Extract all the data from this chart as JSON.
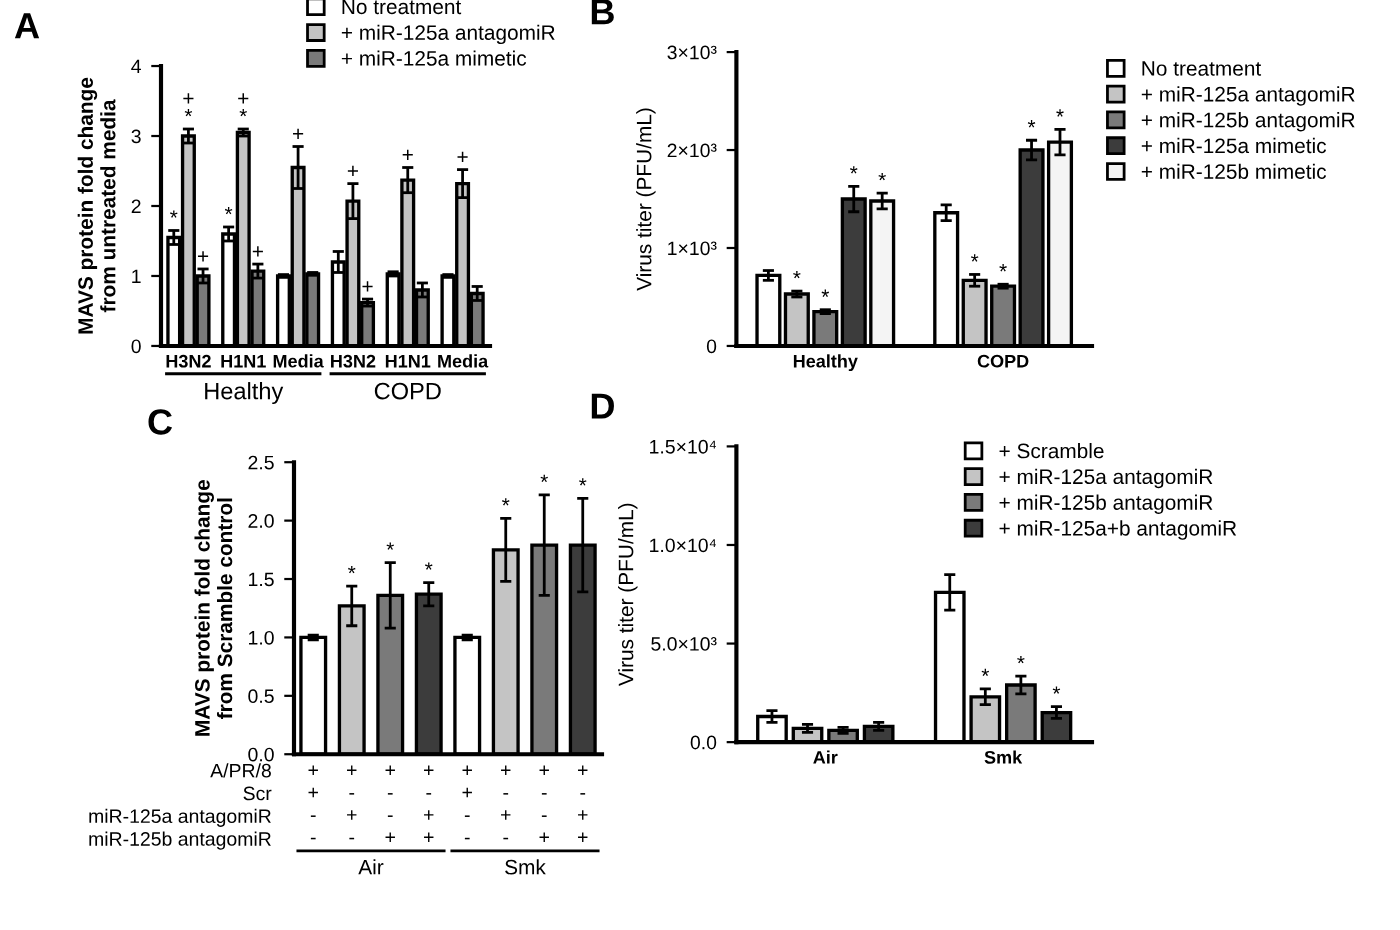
{
  "chart_data": [
    {
      "type": "bar",
      "title": "A",
      "ylabel": "MAVS protein fold change\nfrom untreated media",
      "categories": [
        "H3N2",
        "H1N1",
        "Media",
        "H3N2",
        "H1N1",
        "Media"
      ],
      "annotations": [
        "Healthy",
        "COPD"
      ],
      "ylim": [
        0,
        4
      ],
      "yticks": [
        0,
        1,
        2,
        3,
        4
      ],
      "legend": "top",
      "series": [
        {
          "name": "No treatment",
          "color": "#ffffff",
          "values": [
            1.55,
            1.6,
            1.0,
            1.2,
            1.03,
            1.0
          ],
          "errors": [
            0.1,
            0.1,
            0.02,
            0.15,
            0.03,
            0.02
          ],
          "value_labels": [
            "*",
            "*",
            null,
            null,
            null,
            null
          ]
        },
        {
          "name": "+ miR-125a antagomiR",
          "color": "#c4c4c4",
          "values": [
            3.0,
            3.05,
            2.55,
            2.07,
            2.37,
            2.32
          ],
          "errors": [
            0.1,
            0.05,
            0.3,
            0.25,
            0.18,
            0.2
          ],
          "value_labels": [
            "+\n*",
            "+\n*",
            "+",
            "+",
            "+",
            "+"
          ]
        },
        {
          "name": "+ miR-125a mimetic",
          "color": "#7a7a7a",
          "values": [
            1.0,
            1.07,
            1.03,
            0.62,
            0.8,
            0.75
          ],
          "errors": [
            0.1,
            0.1,
            0.02,
            0.05,
            0.1,
            0.1
          ],
          "value_labels": [
            "+",
            "+",
            null,
            "+",
            null,
            null
          ]
        }
      ]
    },
    {
      "type": "bar",
      "title": "B",
      "ylabel": "Virus titer (PFU/mL)",
      "categories": [
        "Healthy",
        "COPD"
      ],
      "ylim": [
        0,
        3000
      ],
      "yticks": [
        0,
        {
          "value": 1000,
          "label": "1×10³"
        },
        {
          "value": 2000,
          "label": "2×10³"
        },
        {
          "value": 3000,
          "label": "3×10³"
        }
      ],
      "legend": "right",
      "series": [
        {
          "name": "No treatment",
          "color": "#ffffff",
          "values": [
            720,
            1360
          ],
          "errors": [
            50,
            80
          ],
          "value_labels": [
            null,
            null
          ]
        },
        {
          "name": "+ miR-125a antagomiR",
          "color": "#c4c4c4",
          "values": [
            530,
            670
          ],
          "errors": [
            30,
            60
          ],
          "value_labels": [
            "*",
            "*"
          ]
        },
        {
          "name": "+ miR-125b antagomiR",
          "color": "#7a7a7a",
          "values": [
            350,
            610
          ],
          "errors": [
            20,
            20
          ],
          "value_labels": [
            "*",
            "*"
          ]
        },
        {
          "name": "+ miR-125a mimetic",
          "color": "#3c3c3c",
          "values": [
            1500,
            2000
          ],
          "errors": [
            130,
            100
          ],
          "value_labels": [
            "*",
            "*"
          ]
        },
        {
          "name": "+ miR-125b mimetic",
          "color": "#f4f4f4",
          "values": [
            1480,
            2080
          ],
          "errors": [
            80,
            130
          ],
          "value_labels": [
            "*",
            "*"
          ]
        }
      ]
    },
    {
      "type": "bar",
      "title": "C",
      "ylabel": "MAVS protein fold change\nfrom Scramble control",
      "categories": [
        "+\n+\n-\n-",
        "+\n-\n+\n-",
        "+\n-\n-\n+",
        "+\n-\n+\n+",
        "+\n+\n-\n-",
        "+\n-\n+\n-",
        "+\n-\n-\n+",
        "+\n-\n+\n+"
      ],
      "annotations": [
        "A/PR/8",
        "Scr",
        "miR-125a antagomiR",
        "miR-125b antagomiR",
        "Air",
        "Smk"
      ],
      "ylim": [
        0,
        2.5
      ],
      "yticks": [
        {
          "value": 0,
          "label": "0.0"
        },
        {
          "value": 0.5,
          "label": "0.5"
        },
        {
          "value": 1,
          "label": "1.0"
        },
        {
          "value": 1.5,
          "label": "1.5"
        },
        {
          "value": 2,
          "label": "2.0"
        },
        {
          "value": 2.5,
          "label": "2.5"
        }
      ],
      "series": [
        {
          "colors": [
            "#ffffff",
            "#c4c4c4",
            "#7a7a7a",
            "#3c3c3c",
            "#ffffff",
            "#c4c4c4",
            "#7a7a7a",
            "#3c3c3c"
          ],
          "values": [
            1.0,
            1.27,
            1.36,
            1.37,
            1.0,
            1.75,
            1.79,
            1.79
          ],
          "errors": [
            0.02,
            0.17,
            0.28,
            0.1,
            0.02,
            0.27,
            0.43,
            0.4
          ],
          "value_labels": [
            null,
            "*",
            "*",
            "*",
            null,
            "*",
            "*",
            "*"
          ]
        }
      ]
    },
    {
      "type": "bar",
      "title": "D",
      "ylabel": "Virus titer (PFU/mL)",
      "categories": [
        "Air",
        "Smk"
      ],
      "ylim": [
        0,
        15000
      ],
      "yticks": [
        {
          "value": 0,
          "label": "0.0"
        },
        {
          "value": 5000,
          "label": "5.0×10³"
        },
        {
          "value": 10000,
          "label": "1.0×10⁴"
        },
        {
          "value": 15000,
          "label": "1.5×10⁴"
        }
      ],
      "legend": "top right",
      "series": [
        {
          "name": "+ Scramble",
          "color": "#ffffff",
          "values": [
            1300,
            7600
          ],
          "errors": [
            300,
            900
          ],
          "value_labels": [
            null,
            null
          ]
        },
        {
          "name": "+ miR-125a antagomiR",
          "color": "#c4c4c4",
          "values": [
            700,
            2300
          ],
          "errors": [
            200,
            400
          ],
          "value_labels": [
            null,
            "*"
          ]
        },
        {
          "name": "+ miR-125b antagomiR",
          "color": "#7a7a7a",
          "values": [
            600,
            2900
          ],
          "errors": [
            150,
            450
          ],
          "value_labels": [
            null,
            "*"
          ]
        },
        {
          "name": "+ miR-125a+b antagomiR",
          "color": "#3c3c3c",
          "values": [
            800,
            1500
          ],
          "errors": [
            200,
            300
          ],
          "value_labels": [
            null,
            "*"
          ]
        }
      ]
    }
  ]
}
